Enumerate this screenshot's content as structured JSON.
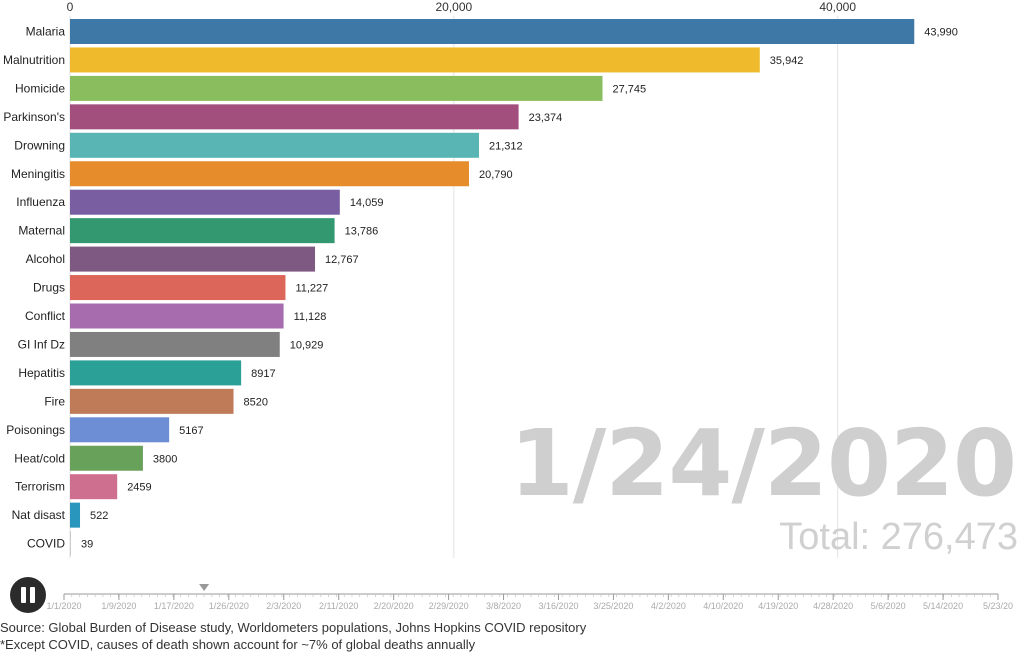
{
  "chart_data": {
    "type": "bar",
    "orientation": "horizontal",
    "categories": [
      "Malaria",
      "Malnutrition",
      "Homicide",
      "Parkinson's",
      "Drowning",
      "Meningitis",
      "Influenza",
      "Maternal",
      "Alcohol",
      "Drugs",
      "Conflict",
      "GI Inf Dz",
      "Hepatitis",
      "Fire",
      "Poisonings",
      "Heat/cold",
      "Terrorism",
      "Nat disast",
      "COVID"
    ],
    "values": [
      43990,
      35942,
      27745,
      23374,
      21312,
      20790,
      14059,
      13786,
      12767,
      11227,
      11128,
      10929,
      8917,
      8520,
      5167,
      3800,
      2459,
      522,
      39
    ],
    "value_labels": [
      "43,990",
      "35,942",
      "27,745",
      "23,374",
      "21,312",
      "20,790",
      "14,059",
      "13,786",
      "12,767",
      "11,227",
      "11,128",
      "10,929",
      "8917",
      "8520",
      "5167",
      "3800",
      "2459",
      "522",
      "39"
    ],
    "colors": [
      "#3e78a6",
      "#efbb2c",
      "#8abd5e",
      "#a34f7e",
      "#58b5b3",
      "#e68c2a",
      "#7a5ea2",
      "#339870",
      "#7e5a82",
      "#dc6659",
      "#a66cad",
      "#808080",
      "#2ba097",
      "#bf7b58",
      "#6d8ed4",
      "#68a25a",
      "#cf6f8f",
      "#2997bd",
      "#cccccc"
    ],
    "x_ticks": [
      0,
      20000,
      40000
    ],
    "x_tick_labels": [
      "0",
      "20,000",
      "40,000"
    ],
    "xlim": [
      0,
      49500
    ],
    "xaxis_position": "top",
    "grid": true
  },
  "overlay": {
    "date": "1/24/2020",
    "total": "Total: 276,473"
  },
  "timeline": {
    "dates": [
      "1/1/2020",
      "1/9/2020",
      "1/17/2020",
      "1/26/2020",
      "2/3/2020",
      "2/11/2020",
      "2/20/2020",
      "2/29/2020",
      "3/8/2020",
      "3/16/2020",
      "3/25/2020",
      "4/2/2020",
      "4/10/2020",
      "4/19/2020",
      "4/28/2020",
      "5/6/2020",
      "5/14/2020",
      "5/23/20"
    ],
    "current_index": 3
  },
  "footer": {
    "source": "Source: Global Burden of Disease study, Worldometers populations, Johns Hopkins COVID repository",
    "note": "*Except COVID, causes of death shown account for ~7% of global deaths annually"
  }
}
